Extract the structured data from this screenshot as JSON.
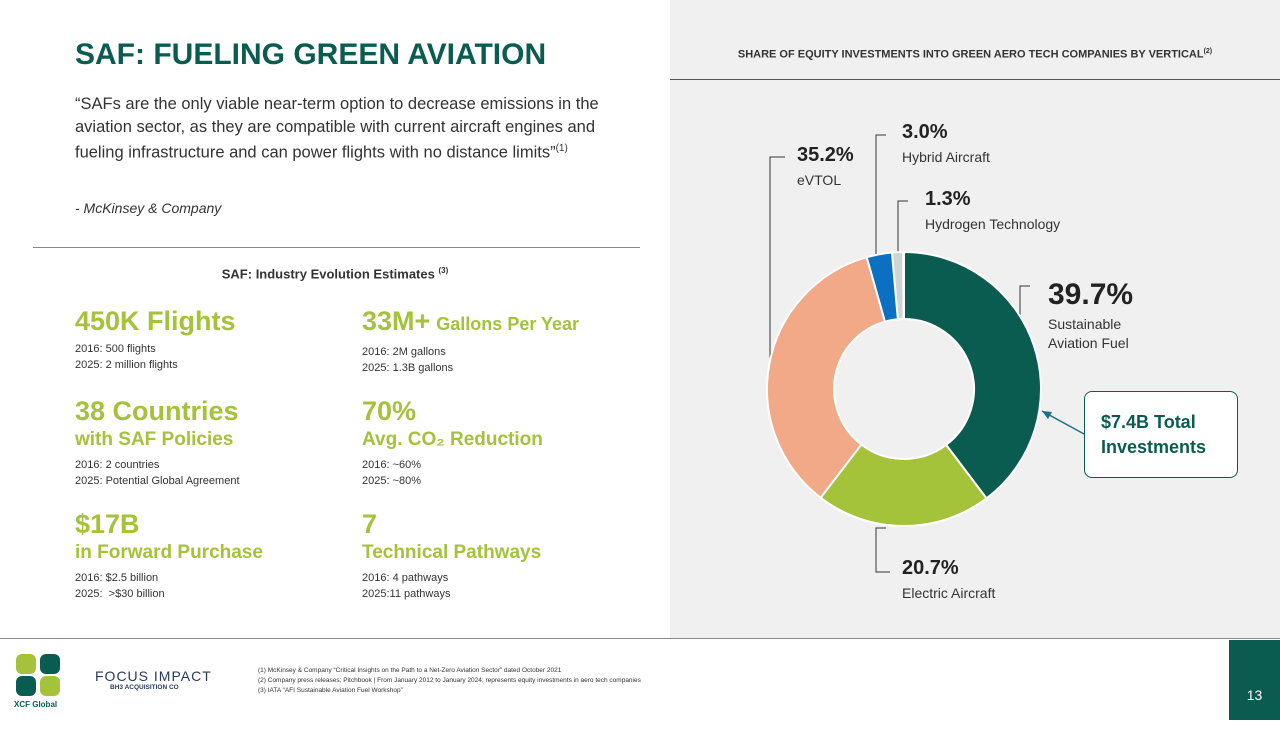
{
  "title": "SAF: FUELING GREEN AVIATION",
  "quote": {
    "text": "“SAFs are the only viable near-term option to decrease emissions in the aviation sector, as they are compatible with current aircraft engines and fueling infrastructure and can power flights with no distance limits”",
    "ref": "(1)",
    "source": "- McKinsey & Company"
  },
  "estimates": {
    "title": "SAF: Industry Evolution Estimates",
    "ref": "(3)",
    "items": [
      {
        "headline": "450K Flights",
        "details": [
          "2016: 500 flights",
          "2025: 2 million flights"
        ]
      },
      {
        "headline": "33M+",
        "inline": "Gallons Per Year",
        "details": [
          "2016: 2M gallons",
          "2025: 1.3B gallons"
        ]
      },
      {
        "headline": "38 Countries",
        "subhead": "with SAF Policies",
        "details": [
          "2016: 2 countries",
          "2025: Potential Global Agreement"
        ]
      },
      {
        "headline": "70%",
        "subhead": "Avg. CO₂ Reduction",
        "details": [
          "2016: ~60%",
          "2025: ~80%"
        ]
      },
      {
        "headline": "$17B",
        "subhead": "in Forward Purchase",
        "details": [
          "2016: $2.5 billion",
          "2025:  >$30 billion"
        ]
      },
      {
        "headline": "7",
        "subhead": "Technical Pathways",
        "details": [
          "2016: 4 pathways",
          "2025:11 pathways"
        ]
      }
    ]
  },
  "chart_data": {
    "type": "pie",
    "title": "SHARE OF EQUITY INVESTMENTS INTO GREEN AERO TECH COMPANIES BY VERTICAL",
    "title_ref": "(2)",
    "categories": [
      "Sustainable Aviation Fuel",
      "Electric Aircraft",
      "eVTOL",
      "Hybrid Aircraft",
      "Hydrogen Technology"
    ],
    "values": [
      39.7,
      20.7,
      35.2,
      3.0,
      1.3
    ],
    "value_labels": [
      "39.7%",
      "20.7%",
      "35.2%",
      "3.0%",
      "1.3%"
    ],
    "colors": [
      "#0b5c50",
      "#a4c23a",
      "#f1a988",
      "#0b70c2",
      "#cfd4d4"
    ],
    "annotation": "$7.4B Total Investments"
  },
  "footnotes": [
    "(1) McKinsey & Company “Critical Insights on the Path to a Net-Zero Aviation Sector” dated October 2021",
    "(2) Company press releases; Pitchbook | From January 2012 to January 2024; represents equity investments in aero tech companies",
    "(3) IATA “AFI Sustainable Aviation Fuel Workshop”"
  ],
  "logos": {
    "xcf": "XCF Global",
    "focus": "FOCUS IMPACT",
    "focus_sub": "BH3 ACQUISITION CO"
  },
  "page_number": "13"
}
